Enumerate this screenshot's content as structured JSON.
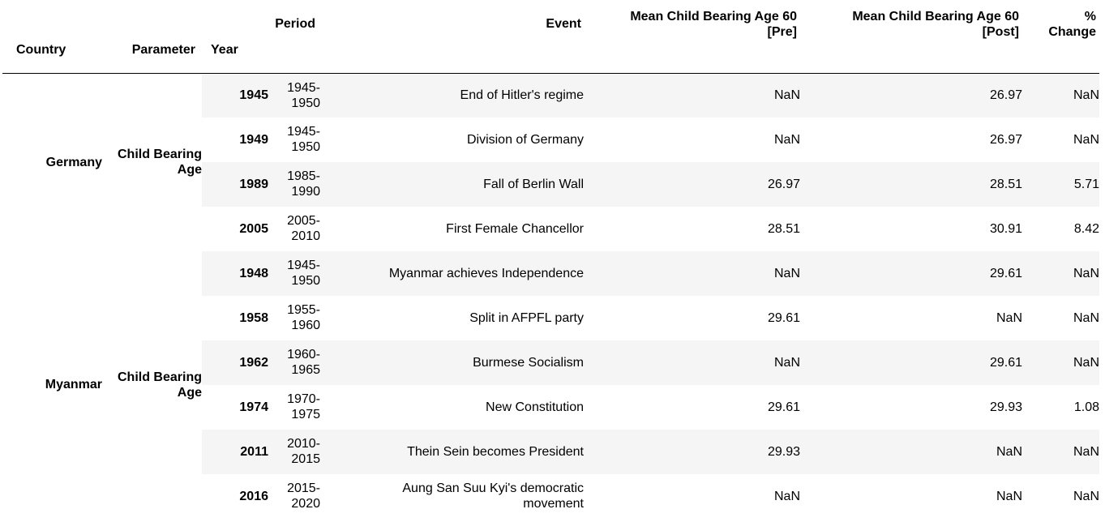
{
  "header": {
    "row1": {
      "period": "Period",
      "event": "Event",
      "pre": [
        "Mean Child Bearing Age 60",
        "[Pre]"
      ],
      "post": [
        "Mean Child Bearing Age 60",
        "[Post]"
      ],
      "change": [
        "%",
        "Change"
      ]
    },
    "row2": {
      "country": "Country",
      "parameter": "Parameter",
      "year": "Year"
    }
  },
  "groups": [
    {
      "country": "Germany",
      "parameter": [
        "Child Bearing",
        "Age"
      ]
    },
    {
      "country": "Myanmar",
      "parameter": [
        "Child Bearing",
        "Age"
      ]
    }
  ],
  "rows": [
    {
      "year": "1945",
      "period": [
        "1945-",
        "1950"
      ],
      "event": [
        "End of Hitler's regime"
      ],
      "pre": "NaN",
      "post": "26.97",
      "change": "NaN"
    },
    {
      "year": "1949",
      "period": [
        "1945-",
        "1950"
      ],
      "event": [
        "Division of Germany"
      ],
      "pre": "NaN",
      "post": "26.97",
      "change": "NaN"
    },
    {
      "year": "1989",
      "period": [
        "1985-",
        "1990"
      ],
      "event": [
        "Fall of Berlin Wall"
      ],
      "pre": "26.97",
      "post": "28.51",
      "change": "5.71"
    },
    {
      "year": "2005",
      "period": [
        "2005-",
        "2010"
      ],
      "event": [
        "First Female Chancellor"
      ],
      "pre": "28.51",
      "post": "30.91",
      "change": "8.42"
    },
    {
      "year": "1948",
      "period": [
        "1945-",
        "1950"
      ],
      "event": [
        "Myanmar achieves Independence"
      ],
      "pre": "NaN",
      "post": "29.61",
      "change": "NaN"
    },
    {
      "year": "1958",
      "period": [
        "1955-",
        "1960"
      ],
      "event": [
        "Split in AFPFL party"
      ],
      "pre": "29.61",
      "post": "NaN",
      "change": "NaN"
    },
    {
      "year": "1962",
      "period": [
        "1960-",
        "1965"
      ],
      "event": [
        "Burmese Socialism"
      ],
      "pre": "NaN",
      "post": "29.61",
      "change": "NaN"
    },
    {
      "year": "1974",
      "period": [
        "1970-",
        "1975"
      ],
      "event": [
        "New Constitution"
      ],
      "pre": "29.61",
      "post": "29.93",
      "change": "1.08"
    },
    {
      "year": "2011",
      "period": [
        "2010-",
        "2015"
      ],
      "event": [
        "Thein Sein becomes President"
      ],
      "pre": "29.93",
      "post": "NaN",
      "change": "NaN"
    },
    {
      "year": "2016",
      "period": [
        "2015-",
        "2020"
      ],
      "event": [
        "Aung San Suu Kyi's democratic",
        "movement"
      ],
      "pre": "NaN",
      "post": "NaN",
      "change": "NaN"
    }
  ]
}
